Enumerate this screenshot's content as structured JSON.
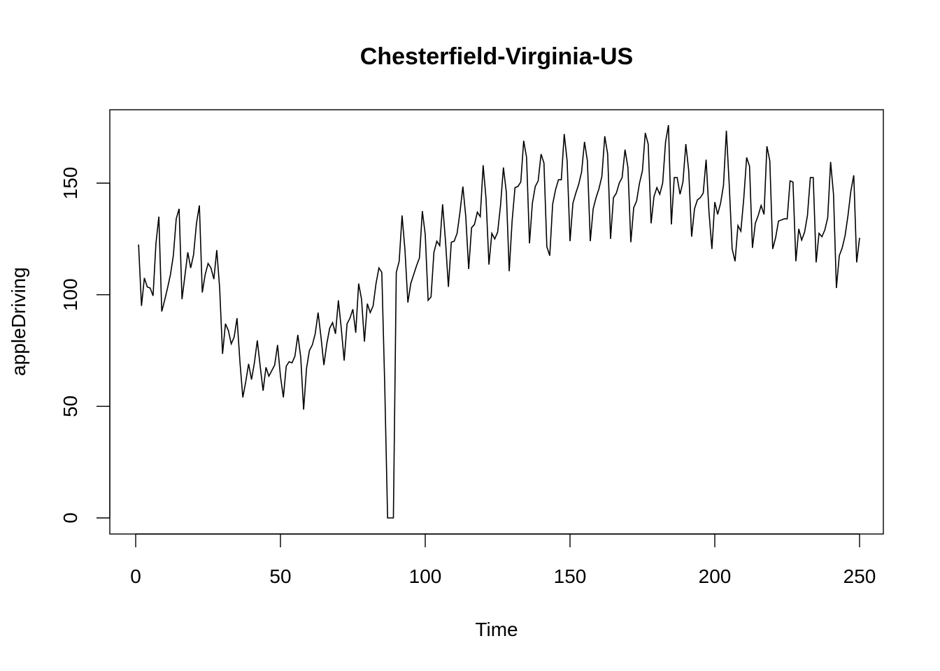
{
  "chart_data": {
    "type": "line",
    "title": "Chesterfield-Virginia-US",
    "xlabel": "Time",
    "ylabel": "appleDriving",
    "xlim": [
      0,
      250
    ],
    "ylim": [
      0,
      175
    ],
    "x_ticks": [
      0,
      50,
      100,
      150,
      200,
      250
    ],
    "y_ticks": [
      0,
      50,
      100,
      150
    ],
    "x_tick_labels": [
      "0",
      "50",
      "100",
      "150",
      "200",
      "250"
    ],
    "y_tick_labels": [
      "0",
      "50",
      "100",
      "150"
    ],
    "grid": false,
    "x_start": 1,
    "x_step": 1,
    "values": [
      122.5,
      95,
      107.5,
      103.5,
      103,
      99.5,
      123,
      135,
      92.5,
      97.5,
      103,
      109,
      117.5,
      134,
      138.5,
      98,
      108.5,
      119,
      112,
      118,
      132,
      140,
      101,
      109,
      114,
      112,
      107,
      120,
      103,
      73.5,
      87,
      84,
      78,
      81,
      89.5,
      70,
      54,
      61,
      69,
      62,
      69.5,
      79.5,
      68,
      57,
      67.5,
      63.5,
      66,
      68.5,
      77.5,
      63.5,
      54,
      68,
      70,
      69.5,
      72.5,
      82,
      72,
      48.5,
      67,
      75,
      77.5,
      82.5,
      92,
      81,
      68.5,
      78,
      85,
      87.5,
      82.5,
      97.5,
      85,
      70.5,
      87,
      89.5,
      93.5,
      83,
      105,
      98,
      79,
      96,
      92,
      95,
      105,
      112,
      110,
      60,
      0,
      0,
      0,
      110,
      115,
      135.5,
      120,
      96.5,
      105,
      109,
      113,
      116.5,
      137.5,
      127,
      97.5,
      99,
      119,
      124,
      122,
      140.5,
      124,
      103.5,
      123.5,
      124,
      127.5,
      137,
      148.5,
      135,
      111.5,
      130,
      131.5,
      137,
      135,
      158,
      143,
      113.5,
      127.5,
      125,
      128,
      140,
      157,
      146,
      110.5,
      133,
      148,
      148.5,
      150.5,
      169,
      161.5,
      123,
      141,
      148.5,
      151,
      163,
      159,
      121.5,
      117.5,
      140.5,
      147,
      151.5,
      151.5,
      172,
      160,
      124,
      141,
      145.5,
      149.5,
      155,
      168.5,
      160,
      124,
      138.5,
      143.5,
      147.5,
      153,
      171,
      163,
      125,
      143.5,
      145.5,
      150,
      152.5,
      165,
      157,
      123.5,
      139,
      142,
      150,
      155.5,
      172.5,
      167.5,
      132,
      144,
      148,
      145,
      150,
      168.5,
      176,
      131.5,
      152.5,
      152.5,
      145,
      150.5,
      167.5,
      155.5,
      126,
      138.5,
      142.5,
      143.5,
      145.5,
      160.5,
      137,
      120.5,
      141.5,
      136,
      141,
      149,
      173.5,
      149,
      120.5,
      115,
      131,
      128.5,
      143,
      161.5,
      157.5,
      121,
      132,
      135.5,
      140,
      136,
      166.5,
      160,
      120.5,
      125.5,
      133,
      133.5,
      134,
      134,
      151,
      150.5,
      115,
      129.5,
      124.5,
      128,
      135.5,
      152.5,
      152.5,
      114.5,
      127.5,
      126,
      129,
      134.5,
      159.5,
      145,
      103,
      117.5,
      121,
      126.5,
      135.5,
      146.5,
      153.5,
      114.5,
      125.5
    ]
  }
}
